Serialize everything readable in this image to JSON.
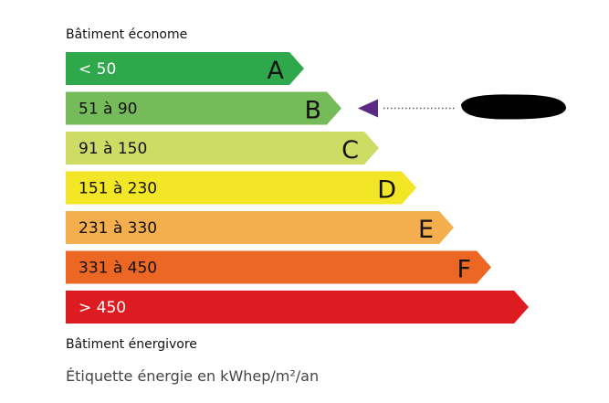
{
  "top_label": "Bâtiment économe",
  "bottom_label": "Bâtiment énergivore",
  "caption": "Étiquette énergie en kWhep/m²/an",
  "classes": [
    {
      "range": "< 50",
      "letter": "A",
      "color": "#2ea84a"
    },
    {
      "range": "51 à 90",
      "letter": "B",
      "color": "#76bb5a"
    },
    {
      "range": "91 à 150",
      "letter": "C",
      "color": "#cddc64"
    },
    {
      "range": "151 à 230",
      "letter": "D",
      "color": "#f2e626"
    },
    {
      "range": "231 à 330",
      "letter": "E",
      "color": "#f5ae4e"
    },
    {
      "range": "331 à 450",
      "letter": "F",
      "color": "#ec6723"
    },
    {
      "range": "> 450",
      "letter": "",
      "color": "#dd1c22"
    }
  ],
  "indicator": {
    "class": "B",
    "color": "#5c2a83",
    "value_redacted": true
  }
}
